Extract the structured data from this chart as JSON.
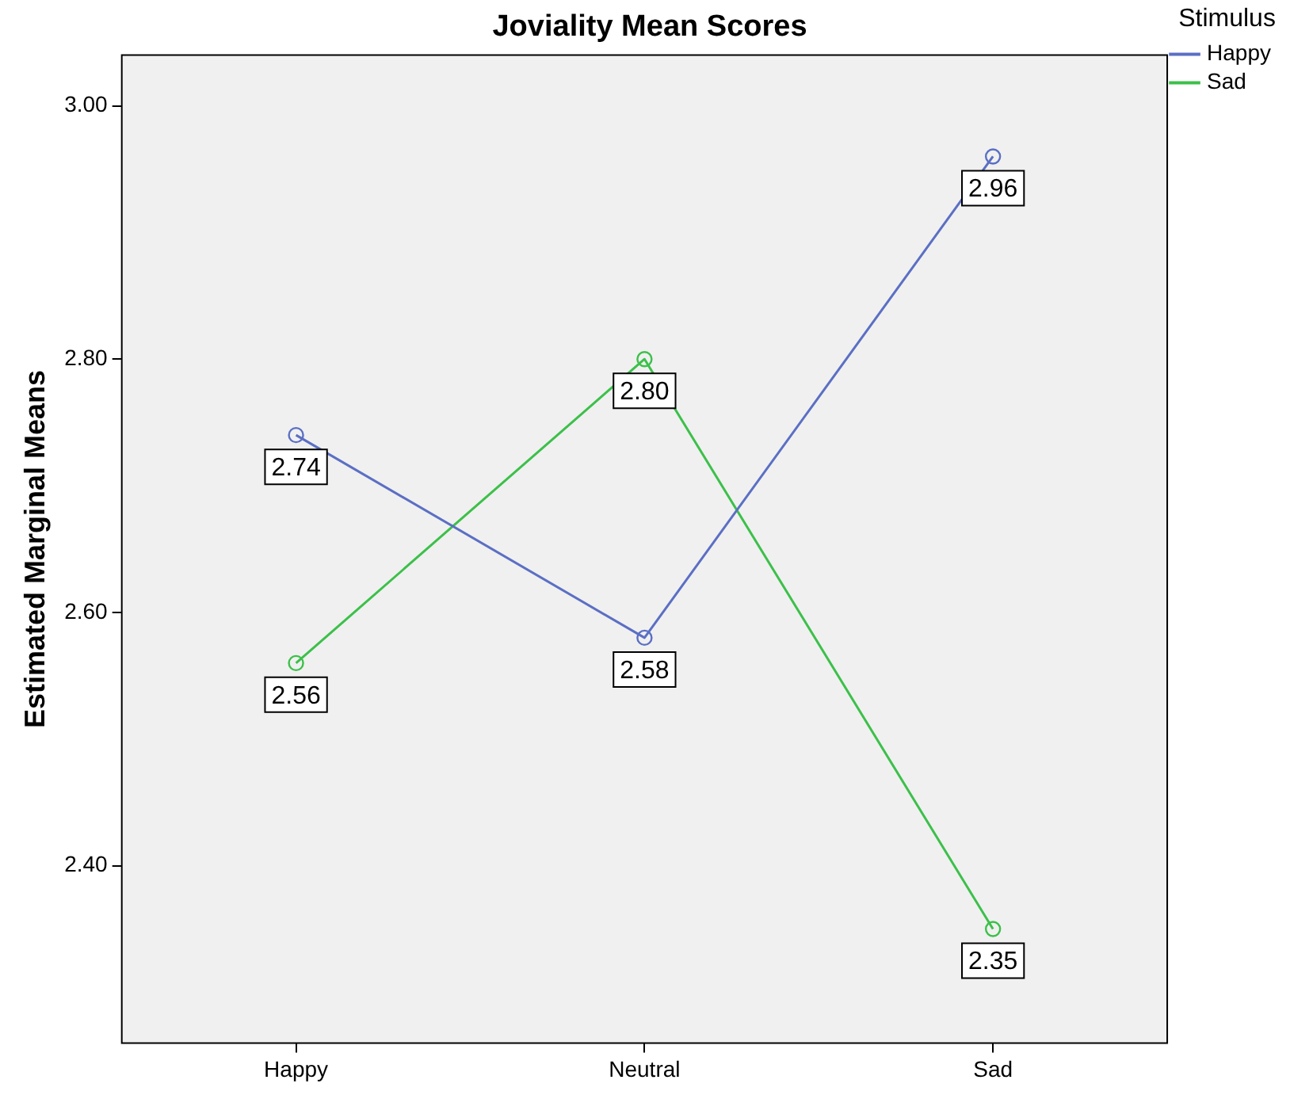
{
  "chart_data": {
    "type": "line",
    "title": "Joviality Mean Scores",
    "ylabel": "Estimated Marginal Means",
    "legend_title": "Stimulus",
    "categories": [
      "Happy",
      "Neutral",
      "Sad"
    ],
    "series": [
      {
        "name": "Happy",
        "color": "#5b6fc4",
        "values": [
          2.74,
          2.58,
          2.96
        ],
        "value_labels": [
          "2.74",
          "2.58",
          "2.96"
        ]
      },
      {
        "name": "Sad",
        "color": "#3cc04a",
        "values": [
          2.56,
          2.8,
          2.35
        ],
        "value_labels": [
          "2.56",
          "2.80",
          "2.35"
        ]
      }
    ],
    "ylim": [
      2.26,
      3.04
    ],
    "yticks": [
      {
        "value": 2.4,
        "label": "2.40"
      },
      {
        "value": 2.6,
        "label": "2.60"
      },
      {
        "value": 2.8,
        "label": "2.80"
      },
      {
        "value": 3.0,
        "label": "3.00"
      }
    ],
    "legend": "top right",
    "marker": "circle",
    "line_style": "solid"
  }
}
